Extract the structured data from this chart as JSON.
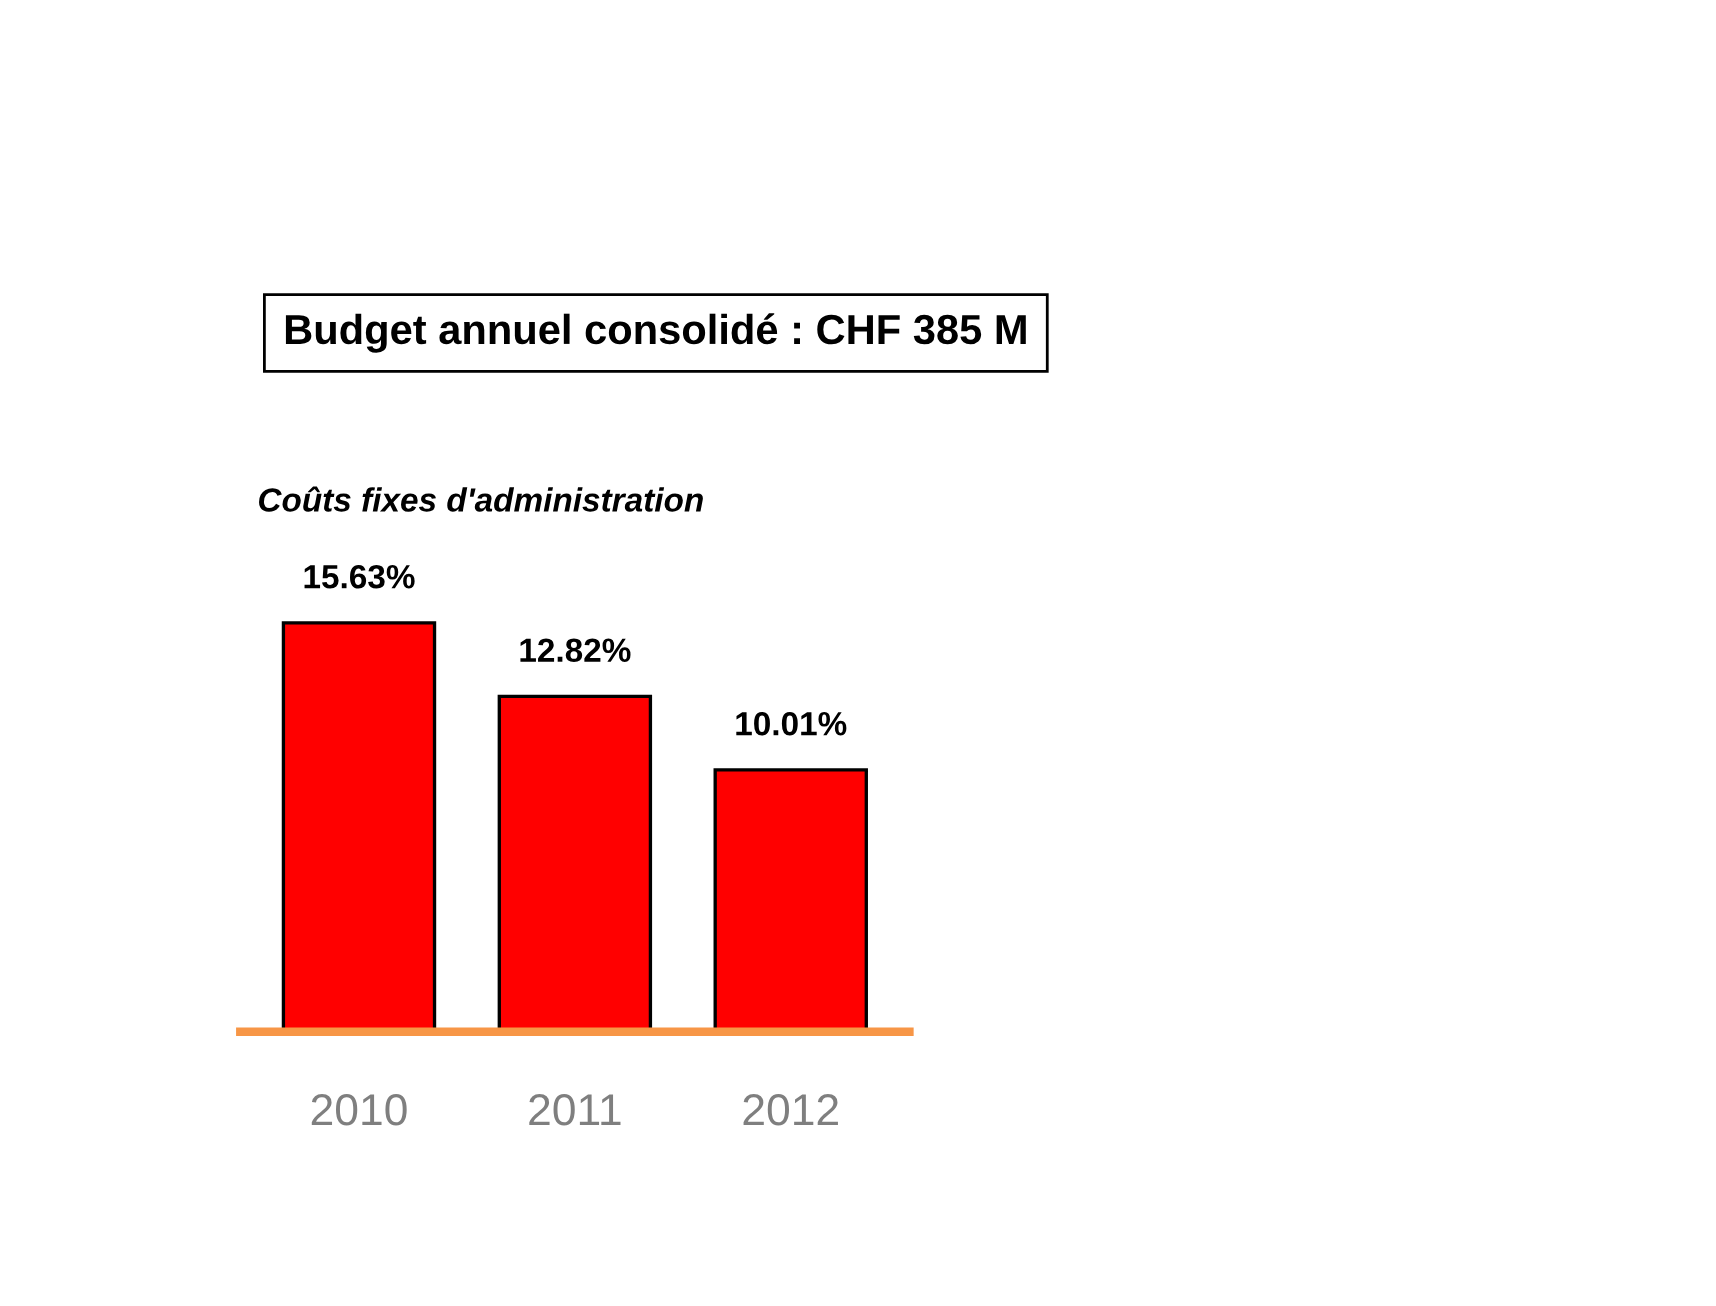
{
  "chart_data": {
    "type": "bar",
    "title": "Budget annuel consolidé : CHF 385 M",
    "subtitle": "Coûts fixes d'administration",
    "categories": [
      "2010",
      "2011",
      "2012"
    ],
    "values": [
      15.63,
      12.82,
      10.01
    ],
    "value_labels": [
      "15.63%",
      "12.82%",
      "10.01%"
    ],
    "color": "#ff0000",
    "grid": false
  }
}
